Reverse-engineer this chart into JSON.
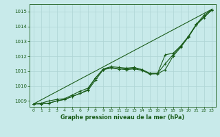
{
  "title": "Graphe pression niveau de la mer (hPa)",
  "background_color": "#c8eaea",
  "grid_color": "#aed4d4",
  "line_color": "#1a5c1a",
  "xlim": [
    -0.5,
    23.5
  ],
  "ylim": [
    1008.6,
    1015.5
  ],
  "xticks": [
    0,
    1,
    2,
    3,
    4,
    5,
    6,
    7,
    8,
    9,
    10,
    11,
    12,
    13,
    14,
    15,
    16,
    17,
    18,
    19,
    20,
    21,
    22,
    23
  ],
  "yticks": [
    1009,
    1010,
    1011,
    1012,
    1013,
    1014,
    1015
  ],
  "series": [
    {
      "x": [
        0,
        1,
        2,
        3,
        4,
        5,
        6,
        7,
        8,
        9,
        10,
        11,
        12,
        13,
        14,
        15,
        16,
        17,
        18,
        19,
        20,
        21,
        22,
        23
      ],
      "y": [
        1008.8,
        1008.85,
        1009.0,
        1009.1,
        1009.15,
        1009.4,
        1009.65,
        1009.85,
        1010.55,
        1011.15,
        1011.3,
        1011.25,
        1011.2,
        1011.25,
        1011.1,
        1010.85,
        1010.85,
        1012.1,
        1012.2,
        1012.7,
        1013.35,
        1014.15,
        1014.75,
        1015.15
      ],
      "marker": true
    },
    {
      "x": [
        0,
        1,
        2,
        3,
        4,
        5,
        6,
        7,
        8,
        9,
        10,
        11,
        12,
        13,
        14,
        15,
        16,
        17,
        18,
        19,
        20,
        21,
        22,
        23
      ],
      "y": [
        1008.8,
        1008.8,
        1008.85,
        1009.0,
        1009.1,
        1009.3,
        1009.5,
        1009.7,
        1010.4,
        1011.1,
        1011.2,
        1011.15,
        1011.1,
        1011.15,
        1011.05,
        1010.8,
        1010.82,
        1011.1,
        1012.0,
        1012.6,
        1013.3,
        1014.1,
        1014.6,
        1015.1
      ],
      "marker": true
    },
    {
      "x": [
        0,
        1,
        2,
        3,
        4,
        5,
        6,
        7,
        8,
        9,
        10,
        11,
        12,
        13,
        14,
        15,
        16,
        17,
        18,
        19,
        20,
        21,
        22,
        23
      ],
      "y": [
        1008.8,
        1008.8,
        1008.85,
        1009.0,
        1009.1,
        1009.3,
        1009.5,
        1009.75,
        1010.55,
        1011.1,
        1011.25,
        1011.15,
        1011.15,
        1011.2,
        1011.1,
        1010.85,
        1010.85,
        1011.5,
        1012.1,
        1012.65,
        1013.3,
        1014.1,
        1014.65,
        1015.1
      ],
      "marker": true
    },
    {
      "x": [
        0,
        23
      ],
      "y": [
        1008.8,
        1015.15
      ],
      "marker": false
    }
  ]
}
